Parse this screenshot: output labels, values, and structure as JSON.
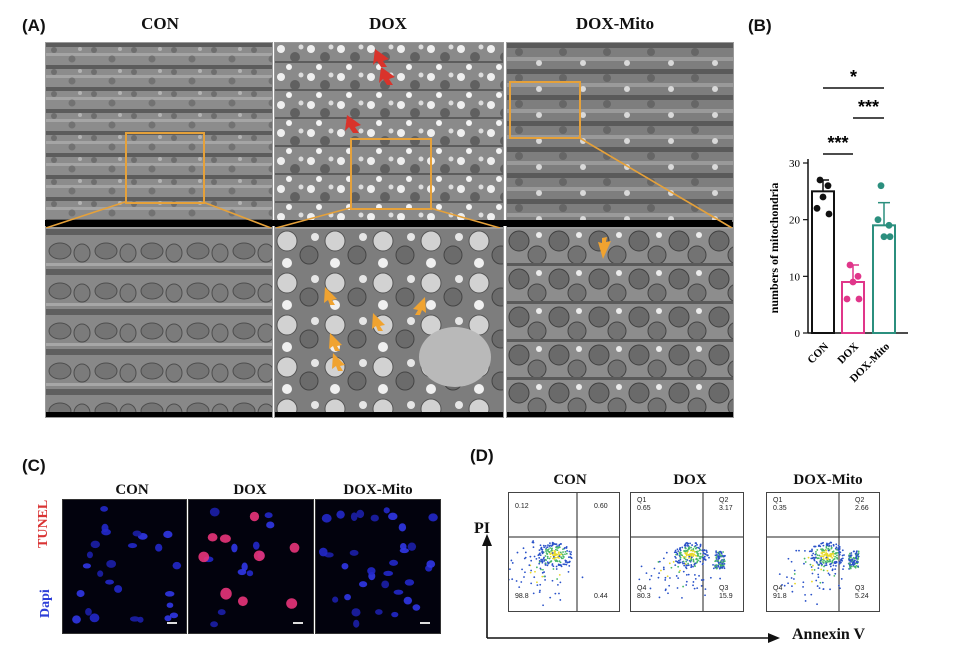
{
  "panel_a": {
    "letter": "(A)",
    "columns": [
      "CON",
      "DOX",
      "DOX-Mito"
    ]
  },
  "panel_b": {
    "letter": "(B)",
    "significance": [
      "*",
      "***",
      "***"
    ]
  },
  "panel_c": {
    "letter": "(C)",
    "columns": [
      "CON",
      "DOX",
      "DOX-Mito"
    ],
    "row_labels": [
      "TUNEL",
      "Dapi"
    ]
  },
  "panel_d": {
    "letter": "(D)",
    "columns": [
      "CON",
      "DOX",
      "DOX-Mito"
    ],
    "y_axis": "PI",
    "x_axis": "Annexin V",
    "plots": [
      {
        "q1": "",
        "q2": "",
        "q3": "",
        "q4": "",
        "tl": "0.12",
        "tr": "0.60",
        "bl": "98.8",
        "br": "0.44"
      },
      {
        "q1": "Q1",
        "q2": "Q2",
        "q3": "Q3",
        "q4": "Q4",
        "tl": "0.65",
        "tr": "3.17",
        "bl": "80.3",
        "br": "15.9"
      },
      {
        "q1": "Q1",
        "q2": "Q2",
        "q3": "Q3",
        "q4": "Q4",
        "tl": "0.35",
        "tr": "2.66",
        "bl": "91.8",
        "br": "5.24"
      }
    ]
  },
  "chart_data": {
    "type": "bar",
    "categories": [
      "CON",
      "DOX",
      "DOX-Mito"
    ],
    "values": [
      25,
      9,
      19
    ],
    "errors": [
      2,
      3,
      4
    ],
    "points": [
      [
        27,
        26,
        24,
        22,
        21
      ],
      [
        12,
        10,
        9,
        6,
        6
      ],
      [
        26,
        19,
        17,
        20,
        17
      ]
    ],
    "colors": [
      "#111111",
      "#e0368a",
      "#2b8f7e"
    ],
    "ylabel": "numbers of mitochondria",
    "xlabel": "",
    "title": "",
    "ylim": [
      0,
      30
    ],
    "yticks": [
      0,
      10,
      20,
      30
    ]
  }
}
